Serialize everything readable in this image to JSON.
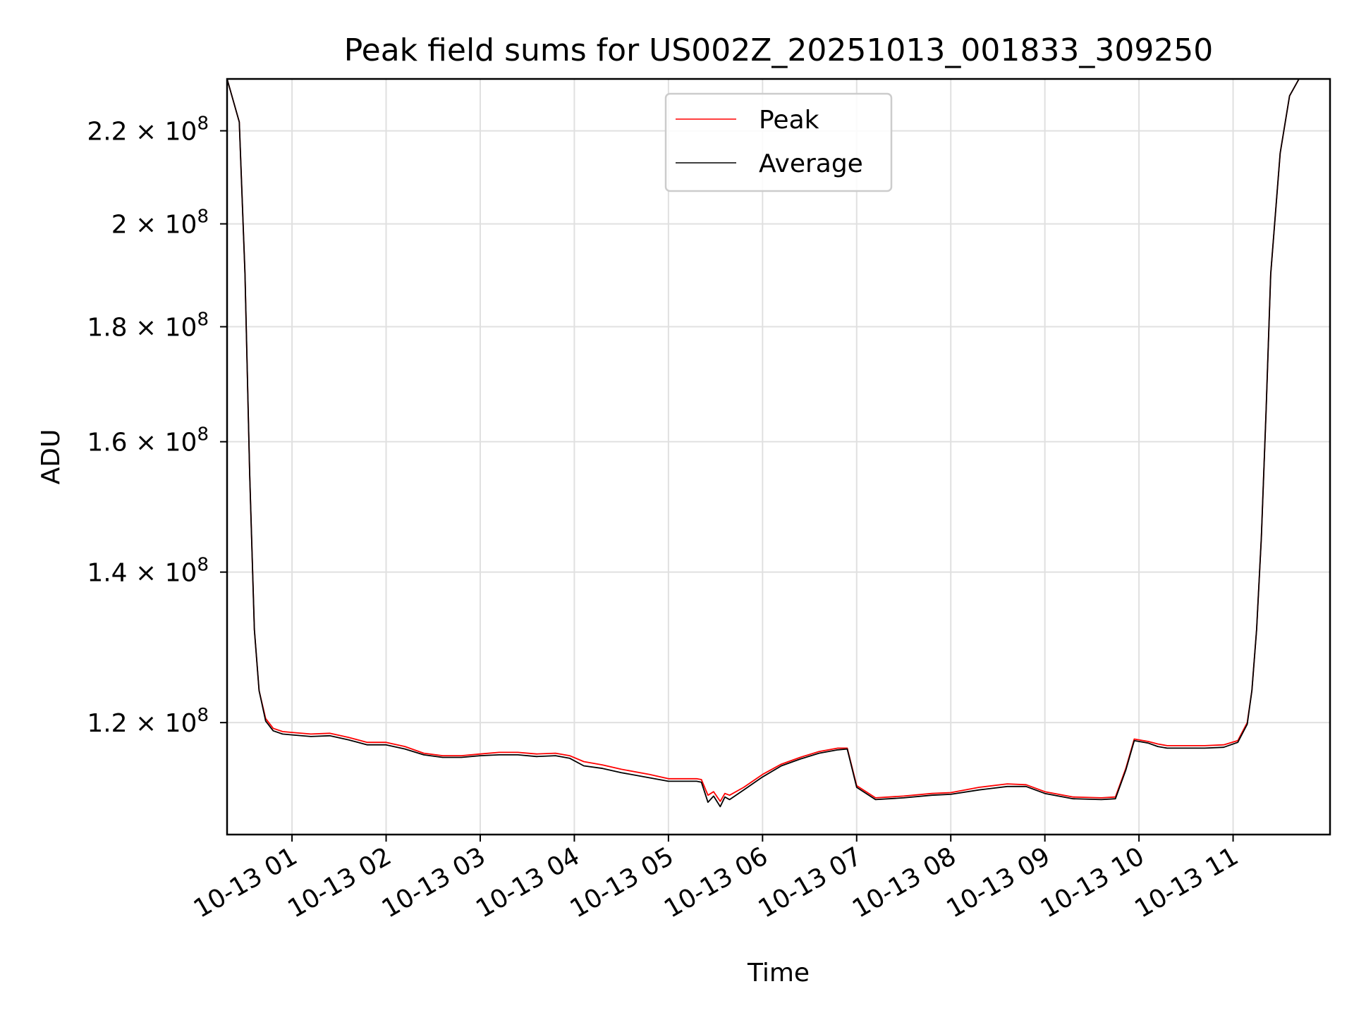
{
  "chart_data": {
    "type": "line",
    "title": "Peak field sums for US002Z_20251013_001833_309250",
    "xlabel": "Time",
    "ylabel": "ADU",
    "yscale": "log",
    "grid": true,
    "legend_position": "top-center",
    "xlim": [
      0.31,
      12.03
    ],
    "ylim": [
      107000000,
      232000000
    ],
    "x_tick_values": [
      1,
      2,
      3,
      4,
      5,
      6,
      7,
      8,
      9,
      10,
      11
    ],
    "x_tick_labels": [
      "10-13 01",
      "10-13 02",
      "10-13 03",
      "10-13 04",
      "10-13 05",
      "10-13 06",
      "10-13 07",
      "10-13 08",
      "10-13 09",
      "10-13 10",
      "10-13 11"
    ],
    "y_ticks": [
      {
        "value": 120000000,
        "mantissa": "1.2",
        "base": "10",
        "exp": "8"
      },
      {
        "value": 140000000,
        "mantissa": "1.4",
        "base": "10",
        "exp": "8"
      },
      {
        "value": 160000000,
        "mantissa": "1.6",
        "base": "10",
        "exp": "8"
      },
      {
        "value": 180000000,
        "mantissa": "1.8",
        "base": "10",
        "exp": "8"
      },
      {
        "value": 200000000,
        "mantissa": "2",
        "base": "10",
        "exp": "8"
      },
      {
        "value": 220000000,
        "mantissa": "2.2",
        "base": "10",
        "exp": "8"
      }
    ],
    "series": [
      {
        "name": "Peak",
        "color": "#ff0000",
        "x": [
          0.31,
          0.44,
          0.5,
          0.55,
          0.6,
          0.65,
          0.72,
          0.8,
          0.9,
          1.0,
          1.2,
          1.4,
          1.6,
          1.8,
          2.0,
          2.2,
          2.4,
          2.6,
          2.8,
          3.0,
          3.2,
          3.4,
          3.6,
          3.8,
          3.95,
          4.1,
          4.3,
          4.5,
          4.8,
          5.0,
          5.2,
          5.3,
          5.35,
          5.42,
          5.48,
          5.55,
          5.6,
          5.65,
          5.8,
          6.0,
          6.2,
          6.4,
          6.6,
          6.8,
          6.9,
          7.0,
          7.2,
          7.5,
          7.8,
          8.0,
          8.3,
          8.6,
          8.8,
          9.0,
          9.3,
          9.6,
          9.75,
          9.86,
          9.95,
          10.1,
          10.2,
          10.3,
          10.5,
          10.7,
          10.9,
          11.05,
          11.15,
          11.2,
          11.25,
          11.3,
          11.35,
          11.4,
          11.5,
          11.6,
          11.7,
          11.8,
          11.9,
          12.03
        ],
        "y": [
          232000000,
          222000000,
          190000000,
          155000000,
          132000000,
          124000000,
          120500000,
          119300000,
          118900000,
          118800000,
          118600000,
          118700000,
          118200000,
          117600000,
          117600000,
          117100000,
          116300000,
          116000000,
          116000000,
          116200000,
          116400000,
          116400000,
          116200000,
          116300000,
          116000000,
          115300000,
          114900000,
          114400000,
          113800000,
          113300000,
          113300000,
          113300000,
          113200000,
          111400000,
          111800000,
          110700000,
          111600000,
          111400000,
          112300000,
          113800000,
          115000000,
          115800000,
          116500000,
          116900000,
          116900000,
          112500000,
          111100000,
          111300000,
          111600000,
          111700000,
          112300000,
          112700000,
          112600000,
          111800000,
          111200000,
          111100000,
          111200000,
          114500000,
          118000000,
          117700000,
          117400000,
          117200000,
          117200000,
          117200000,
          117300000,
          117800000,
          120000000,
          124000000,
          132000000,
          145000000,
          165000000,
          190000000,
          215000000,
          228000000,
          232000000,
          232000000,
          232000000,
          232000000
        ]
      },
      {
        "name": "Average",
        "color": "#000000",
        "x": [
          0.31,
          0.44,
          0.5,
          0.55,
          0.6,
          0.65,
          0.72,
          0.8,
          0.9,
          1.0,
          1.2,
          1.4,
          1.6,
          1.8,
          2.0,
          2.2,
          2.4,
          2.6,
          2.8,
          3.0,
          3.2,
          3.4,
          3.6,
          3.8,
          3.95,
          4.1,
          4.3,
          4.5,
          4.8,
          5.0,
          5.2,
          5.3,
          5.35,
          5.42,
          5.48,
          5.55,
          5.6,
          5.65,
          5.8,
          6.0,
          6.2,
          6.4,
          6.6,
          6.8,
          6.9,
          7.0,
          7.2,
          7.5,
          7.8,
          8.0,
          8.3,
          8.6,
          8.8,
          9.0,
          9.3,
          9.6,
          9.75,
          9.86,
          9.95,
          10.1,
          10.2,
          10.3,
          10.5,
          10.7,
          10.9,
          11.05,
          11.15,
          11.2,
          11.25,
          11.3,
          11.35,
          11.4,
          11.5,
          11.6,
          11.7,
          11.8,
          11.9,
          12.03
        ],
        "y": [
          232000000,
          222000000,
          190000000,
          155000000,
          132000000,
          124000000,
          120200000,
          119000000,
          118600000,
          118500000,
          118300000,
          118400000,
          117900000,
          117300000,
          117300000,
          116800000,
          116100000,
          115800000,
          115800000,
          116000000,
          116100000,
          116100000,
          115900000,
          116000000,
          115700000,
          114800000,
          114500000,
          114000000,
          113400000,
          113000000,
          113000000,
          113000000,
          112900000,
          110600000,
          111300000,
          110100000,
          111200000,
          110900000,
          112000000,
          113500000,
          114800000,
          115600000,
          116300000,
          116700000,
          116800000,
          112300000,
          110900000,
          111100000,
          111400000,
          111500000,
          112000000,
          112400000,
          112400000,
          111600000,
          111000000,
          110900000,
          111000000,
          114300000,
          117800000,
          117500000,
          117100000,
          116900000,
          116900000,
          116900000,
          117000000,
          117600000,
          119800000,
          124000000,
          132000000,
          145000000,
          165000000,
          190000000,
          215000000,
          228000000,
          232000000,
          232000000,
          232000000,
          232000000
        ]
      }
    ]
  }
}
